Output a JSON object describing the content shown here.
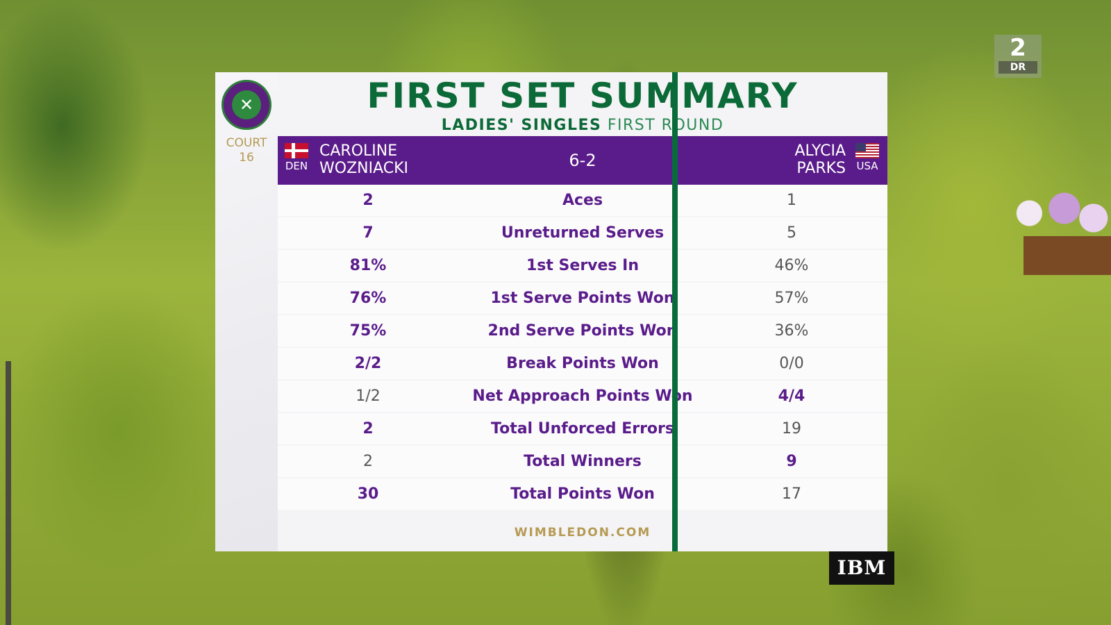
{
  "channel": {
    "number": "2",
    "name": "DR"
  },
  "court": {
    "label": "COURT",
    "number": "16"
  },
  "title": "FIRST SET SUMMARY",
  "subtitle": {
    "bold": "LADIES' SINGLES",
    "light": "FIRST ROUND"
  },
  "player1": {
    "first": "CAROLINE",
    "last": "WOZNIACKI",
    "country": "DEN"
  },
  "player2": {
    "first": "ALYCIA",
    "last": "PARKS",
    "country": "USA"
  },
  "score": "6-2",
  "stats": [
    {
      "label": "Aces",
      "p1": "2",
      "p2": "1",
      "leader": 1
    },
    {
      "label": "Unreturned Serves",
      "p1": "7",
      "p2": "5",
      "leader": 1
    },
    {
      "label": "1st Serves In",
      "p1": "81%",
      "p2": "46%",
      "leader": 1
    },
    {
      "label": "1st Serve Points Won",
      "p1": "76%",
      "p2": "57%",
      "leader": 1
    },
    {
      "label": "2nd Serve Points Won",
      "p1": "75%",
      "p2": "36%",
      "leader": 1
    },
    {
      "label": "Break Points Won",
      "p1": "2/2",
      "p2": "0/0",
      "leader": 1
    },
    {
      "label": "Net Approach Points Won",
      "p1": "1/2",
      "p2": "4/4",
      "leader": 2
    },
    {
      "label": "Total Unforced Errors",
      "p1": "2",
      "p2": "19",
      "leader": 1
    },
    {
      "label": "Total Winners",
      "p1": "2",
      "p2": "9",
      "leader": 2
    },
    {
      "label": "Total Points Won",
      "p1": "30",
      "p2": "17",
      "leader": 1
    }
  ],
  "footer": "WIMBLEDON.COM",
  "sponsor": "IBM",
  "colors": {
    "purple": "#5a1c8a",
    "green": "#0b6a37",
    "gold": "#b59a52"
  }
}
